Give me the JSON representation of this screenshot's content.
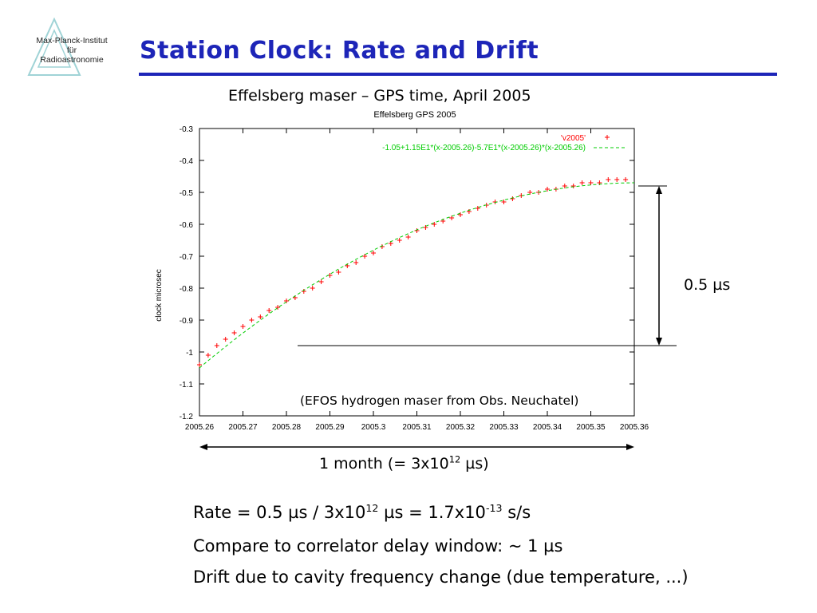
{
  "logo": {
    "line1": "Max-Planck-Institut",
    "line2": "für",
    "line3": "Radioastronomie"
  },
  "slide": {
    "title": "Station Clock: Rate and Drift",
    "subtitle": "Effelsberg maser – GPS time, April 2005",
    "amplitude_label": "0.5 µs",
    "maser_note": "(EFOS hydrogen maser from Obs. Neuchatel)",
    "month_label_pre": "1 month (= 3x10",
    "month_label_exp": "12",
    "month_label_post": " µs)",
    "bullets": {
      "b1_a": "Rate = 0.5 µs / 3x10",
      "b1_b": "12",
      "b1_c": " µs = 1.7x10",
      "b1_d": "-13",
      "b1_e": " s/s",
      "b2": "Compare to correlator delay window: ~ 1 µs",
      "b3": "Drift due to cavity frequency change (due temperature, ...)"
    }
  },
  "colors": {
    "title": "#1d25b8",
    "data": "#ff0000",
    "fit": "#00cc00",
    "frame": "#000000"
  },
  "chart_data": {
    "type": "scatter",
    "title": "Effelsberg GPS 2005",
    "ylabel": "clock microsec",
    "xlabel": "",
    "xlim": [
      2005.26,
      2005.36
    ],
    "ylim": [
      -1.2,
      -0.3
    ],
    "x_ticks": [
      "2005.26",
      "2005.27",
      "2005.28",
      "2005.29",
      "2005.3",
      "2005.31",
      "2005.32",
      "2005.33",
      "2005.34",
      "2005.35",
      "2005.36"
    ],
    "x_tick_values": [
      2005.26,
      2005.27,
      2005.28,
      2005.29,
      2005.3,
      2005.31,
      2005.32,
      2005.33,
      2005.34,
      2005.35,
      2005.36
    ],
    "y_ticks": [
      "-0.3",
      "-0.4",
      "-0.5",
      "-0.6",
      "-0.7",
      "-0.8",
      "-0.9",
      "-1",
      "-1.1",
      "-1.2"
    ],
    "y_tick_values": [
      -0.3,
      -0.4,
      -0.5,
      -0.6,
      -0.7,
      -0.8,
      -0.9,
      -1.0,
      -1.1,
      -1.2
    ],
    "grid": false,
    "legend_position": "top-right",
    "series": [
      {
        "name": "'v2005'",
        "marker": "+",
        "x": [
          2005.26,
          2005.262,
          2005.264,
          2005.266,
          2005.268,
          2005.27,
          2005.272,
          2005.274,
          2005.276,
          2005.278,
          2005.28,
          2005.282,
          2005.284,
          2005.286,
          2005.288,
          2005.29,
          2005.292,
          2005.294,
          2005.296,
          2005.298,
          2005.3,
          2005.302,
          2005.304,
          2005.306,
          2005.308,
          2005.31,
          2005.312,
          2005.314,
          2005.316,
          2005.318,
          2005.32,
          2005.322,
          2005.324,
          2005.326,
          2005.328,
          2005.33,
          2005.332,
          2005.334,
          2005.336,
          2005.338,
          2005.34,
          2005.342,
          2005.344,
          2005.346,
          2005.348,
          2005.35,
          2005.352,
          2005.354,
          2005.356,
          2005.358
        ],
        "y": [
          -1.04,
          -1.01,
          -0.98,
          -0.96,
          -0.94,
          -0.92,
          -0.9,
          -0.89,
          -0.87,
          -0.86,
          -0.84,
          -0.83,
          -0.81,
          -0.8,
          -0.78,
          -0.76,
          -0.75,
          -0.73,
          -0.72,
          -0.7,
          -0.69,
          -0.67,
          -0.66,
          -0.65,
          -0.64,
          -0.62,
          -0.61,
          -0.6,
          -0.59,
          -0.58,
          -0.57,
          -0.56,
          -0.55,
          -0.54,
          -0.53,
          -0.53,
          -0.52,
          -0.51,
          -0.5,
          -0.5,
          -0.49,
          -0.49,
          -0.48,
          -0.48,
          -0.47,
          -0.47,
          -0.47,
          -0.46,
          -0.46,
          -0.46
        ]
      },
      {
        "name": "-1.05+1.15E1*(x-2005.26)-5.7E1*(x-2005.26)*(x-2005.26)",
        "type": "line",
        "style": "dashed",
        "equation": {
          "c0": -1.05,
          "c1": 11.5,
          "c2": -57,
          "x0": 2005.26
        }
      }
    ],
    "annotations": [
      {
        "text": "0.5 µs",
        "type": "double-arrow",
        "y_range": [
          -0.98,
          -0.48
        ]
      },
      {
        "text": "1 month (= 3x10^12 µs)",
        "type": "double-arrow",
        "x_range": [
          2005.26,
          2005.36
        ]
      }
    ]
  }
}
